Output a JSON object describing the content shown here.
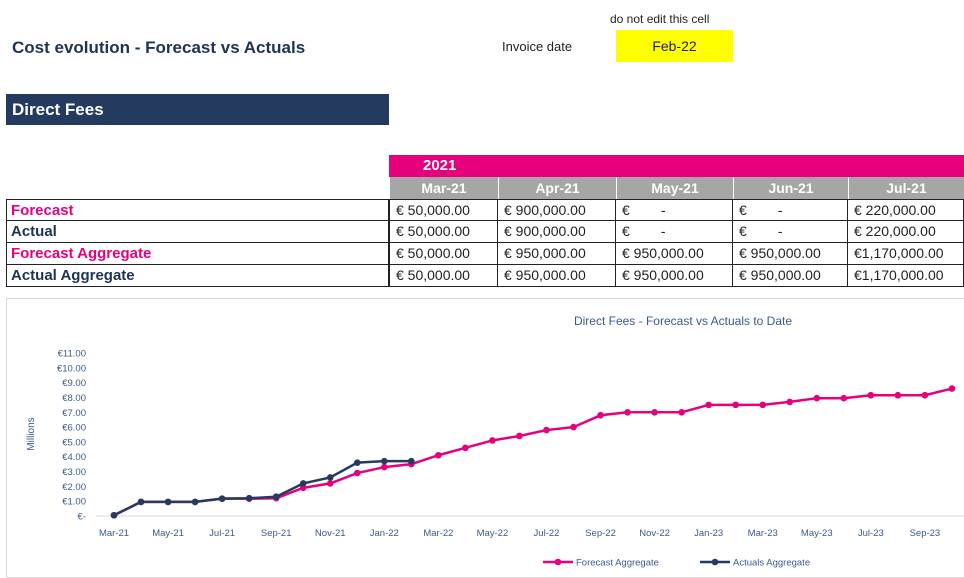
{
  "header": {
    "title": "Cost evolution - Forecast vs Actuals",
    "note": "do not edit this cell",
    "invoice_label": "Invoice date",
    "invoice_date": "Feb-22",
    "section": "Direct Fees"
  },
  "table": {
    "year": "2021",
    "months": [
      "Mar-21",
      "Apr-21",
      "May-21",
      "Jun-21",
      "Jul-21"
    ],
    "rows": [
      {
        "label": "Forecast",
        "color": "#e6007e",
        "cells": [
          "€ 50,000.00",
          "€ 900,000.00",
          "€        -",
          "€        -",
          "€ 220,000.00"
        ]
      },
      {
        "label": "Actual",
        "color": "#1f3352",
        "cells": [
          "€ 50,000.00",
          "€ 900,000.00",
          "€        -",
          "€        -",
          "€ 220,000.00"
        ]
      },
      {
        "label": "Forecast Aggregate",
        "color": "#e6007e",
        "cells": [
          "€ 50,000.00",
          "€ 950,000.00",
          "€ 950,000.00",
          "€ 950,000.00",
          "€1,170,000.00"
        ]
      },
      {
        "label": "Actual Aggregate",
        "color": "#1f3352",
        "cells": [
          "€ 50,000.00",
          "€ 950,000.00",
          "€ 950,000.00",
          "€ 950,000.00",
          "€1,170,000.00"
        ]
      }
    ]
  },
  "chart_data": {
    "type": "line",
    "title": "Direct Fees - Forecast vs Actuals to Date",
    "y_label": "Millions",
    "categories": [
      "Mar-21",
      null,
      "May-21",
      null,
      "Jul-21",
      null,
      "Sep-21",
      null,
      "Nov-21",
      null,
      "Jan-22",
      null,
      "Mar-22",
      null,
      "May-22",
      null,
      "Jul-22",
      null,
      "Sep-22",
      null,
      "Nov-22",
      null,
      "Jan-23",
      null,
      "Mar-23",
      null,
      "May-23",
      null,
      "Jul-23",
      null,
      "Sep-23",
      null
    ],
    "series": [
      {
        "name": "Forecast Aggregate",
        "color": "#e6007e",
        "values": [
          0.05,
          0.95,
          0.95,
          0.95,
          1.17,
          1.17,
          1.2,
          1.9,
          2.2,
          2.9,
          3.3,
          3.5,
          4.1,
          4.6,
          5.1,
          5.4,
          5.8,
          6.0,
          6.8,
          7.0,
          7.0,
          7.0,
          7.5,
          7.5,
          7.5,
          7.7,
          7.95,
          7.95,
          8.15,
          8.15,
          8.15,
          8.6
        ]
      },
      {
        "name": "Actuals Aggregate",
        "color": "#243a5e",
        "values": [
          0.05,
          0.95,
          0.95,
          0.95,
          1.17,
          1.2,
          1.3,
          2.2,
          2.6,
          3.6,
          3.7,
          3.7,
          null,
          null,
          null,
          null,
          null,
          null,
          null,
          null,
          null,
          null,
          null,
          null,
          null,
          null,
          null,
          null,
          null,
          null,
          null,
          null
        ]
      }
    ],
    "ylim": [
      0,
      11
    ],
    "yticks": [
      {
        "value": 0,
        "label": "€-"
      },
      {
        "value": 1,
        "label": "€1.00"
      },
      {
        "value": 2,
        "label": "€2.00"
      },
      {
        "value": 3,
        "label": "€3.00"
      },
      {
        "value": 4,
        "label": "€4.00"
      },
      {
        "value": 5,
        "label": "€5.00"
      },
      {
        "value": 6,
        "label": "€6.00"
      },
      {
        "value": 7,
        "label": "€7.00"
      },
      {
        "value": 8,
        "label": "€8.00"
      },
      {
        "value": 9,
        "label": "€9.00"
      },
      {
        "value": 10,
        "label": "€10.00"
      },
      {
        "value": 11,
        "label": "€11.00"
      }
    ],
    "grid": false,
    "legend": "bottom"
  }
}
